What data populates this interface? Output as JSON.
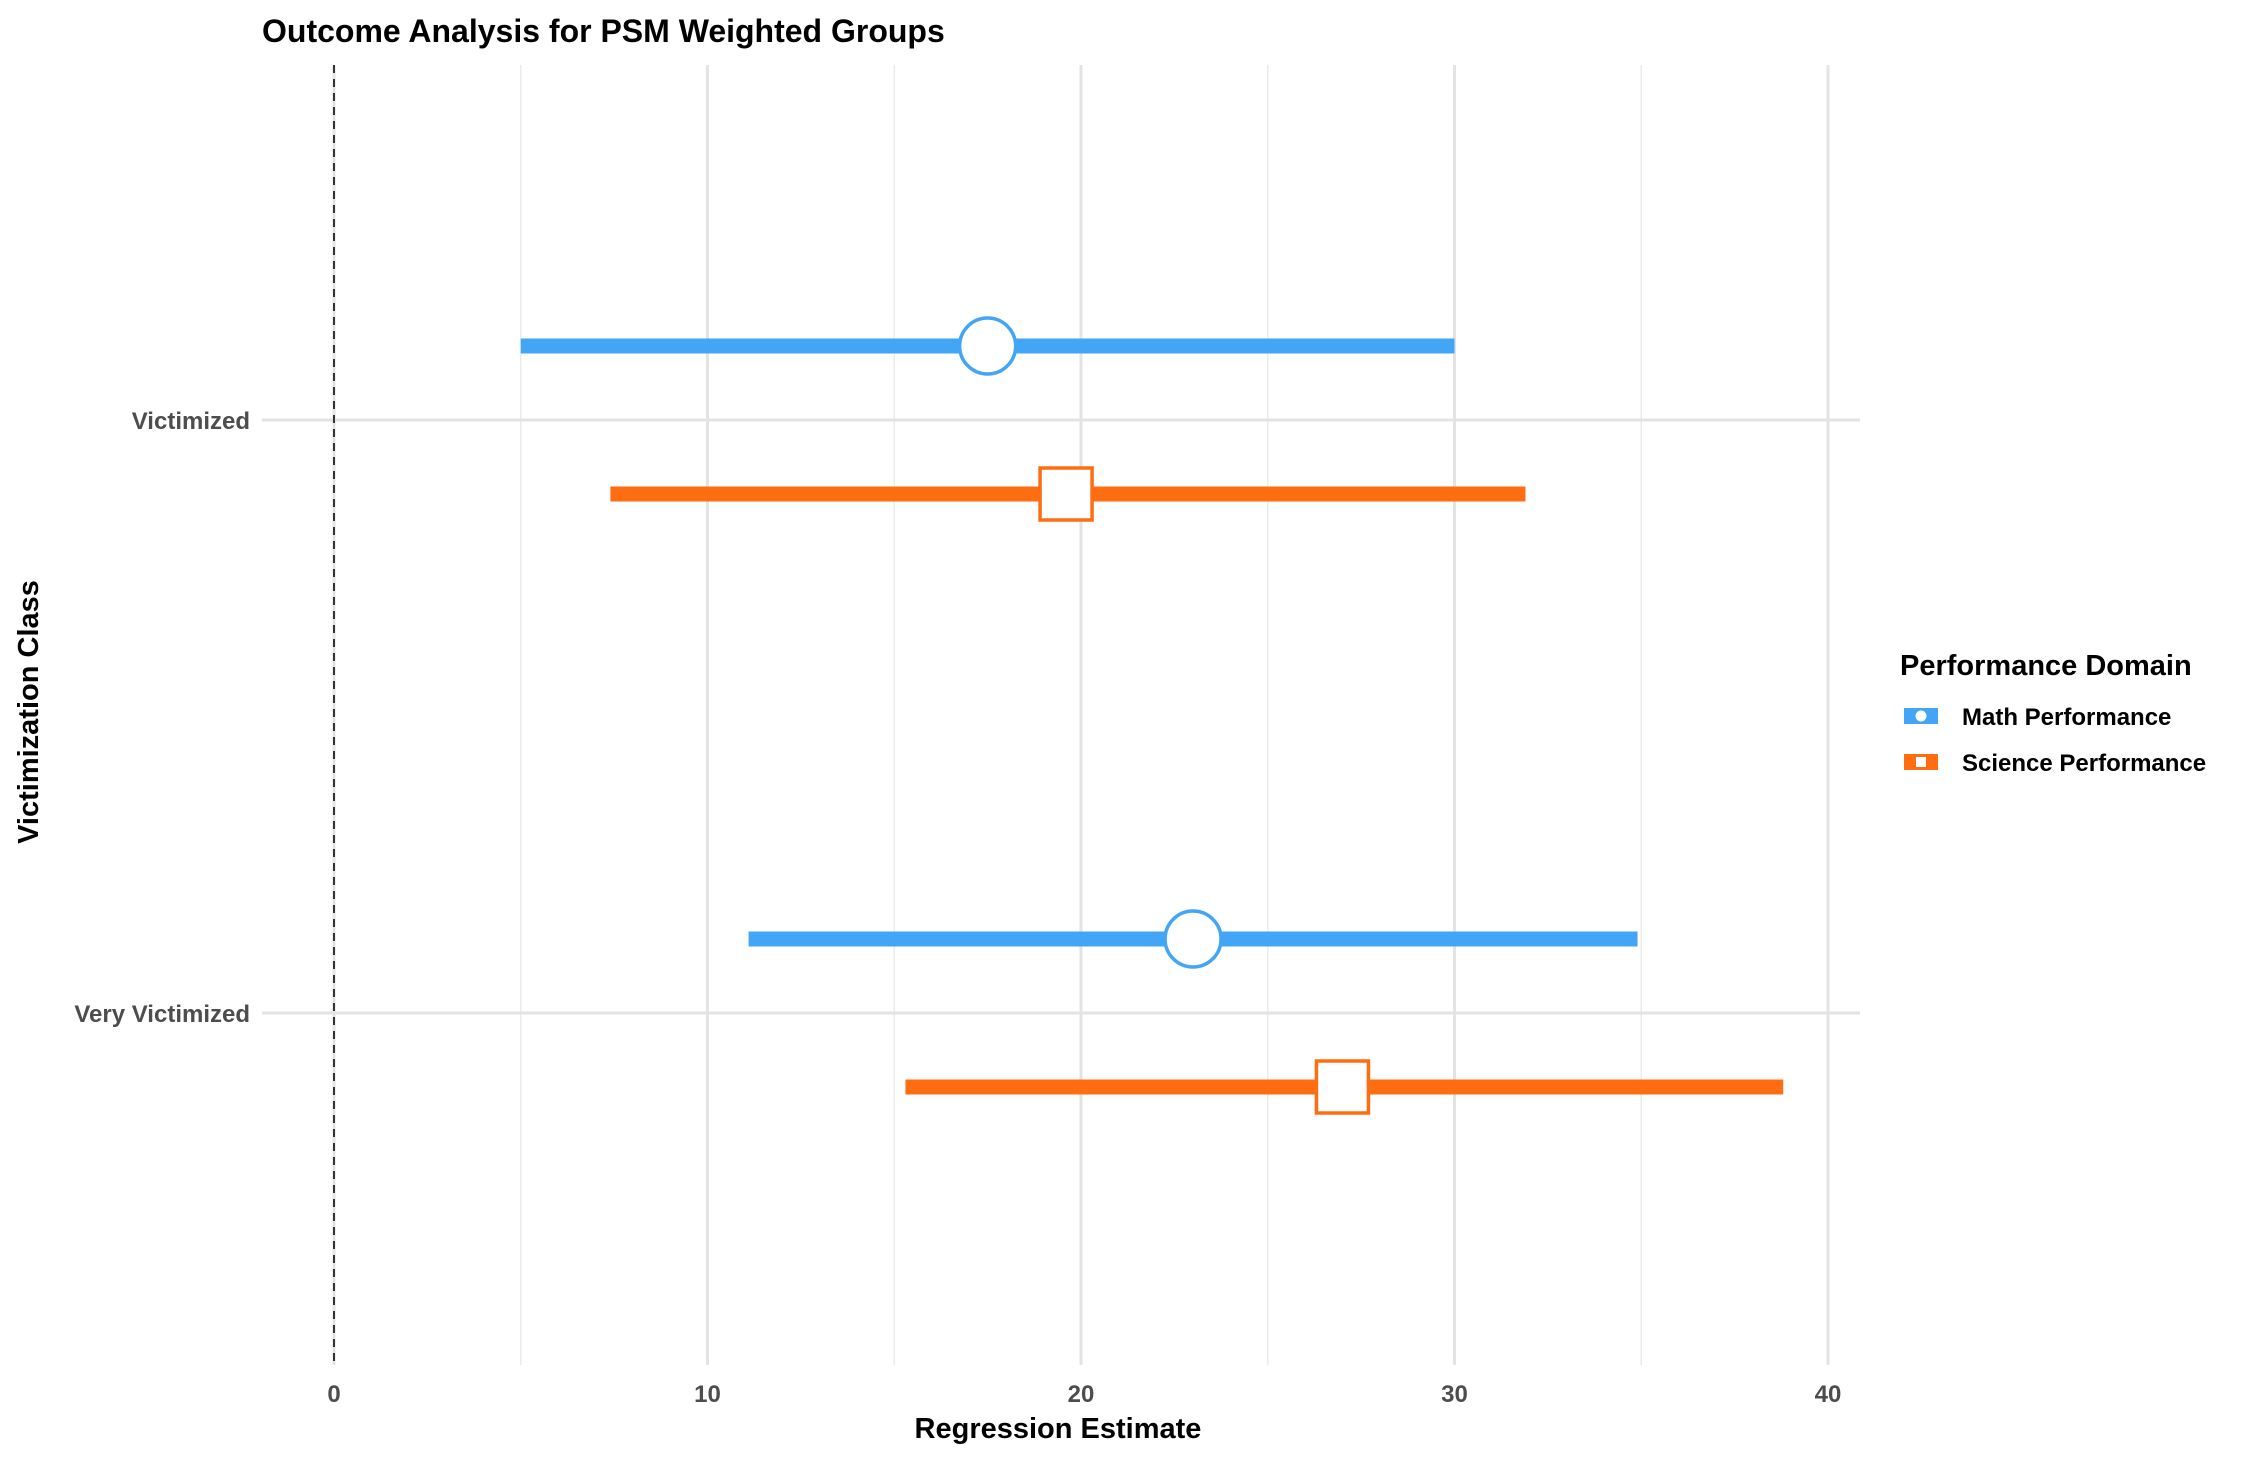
{
  "chart_data": {
    "type": "forest",
    "title": "Outcome Analysis for PSM Weighted Groups",
    "xlabel": "Regression Estimate",
    "ylabel": "Victimization Class",
    "xlim": [
      0,
      40
    ],
    "x_ticks": [
      0,
      10,
      20,
      30,
      40
    ],
    "x_tick_labels": [
      "0",
      "10",
      "20",
      "30",
      "40"
    ],
    "reference_line": 0,
    "categories": [
      "Victimized",
      "Very Victimized"
    ],
    "legend": {
      "title": "Performance Domain",
      "position": "right",
      "items": [
        "Math Performance",
        "Science Performance"
      ]
    },
    "series": [
      {
        "name": "Math Performance",
        "color": "#42a5f5",
        "marker": "circle",
        "points": [
          {
            "category": "Victimized",
            "estimate": 17.5,
            "lower": 5.0,
            "upper": 30.0
          },
          {
            "category": "Very Victimized",
            "estimate": 23.0,
            "lower": 11.1,
            "upper": 34.9
          }
        ]
      },
      {
        "name": "Science Performance",
        "color": "#ff6d12",
        "marker": "square",
        "points": [
          {
            "category": "Victimized",
            "estimate": 19.6,
            "lower": 7.4,
            "upper": 31.9
          },
          {
            "category": "Very Victimized",
            "estimate": 27.0,
            "lower": 15.3,
            "upper": 38.8
          }
        ]
      }
    ]
  }
}
